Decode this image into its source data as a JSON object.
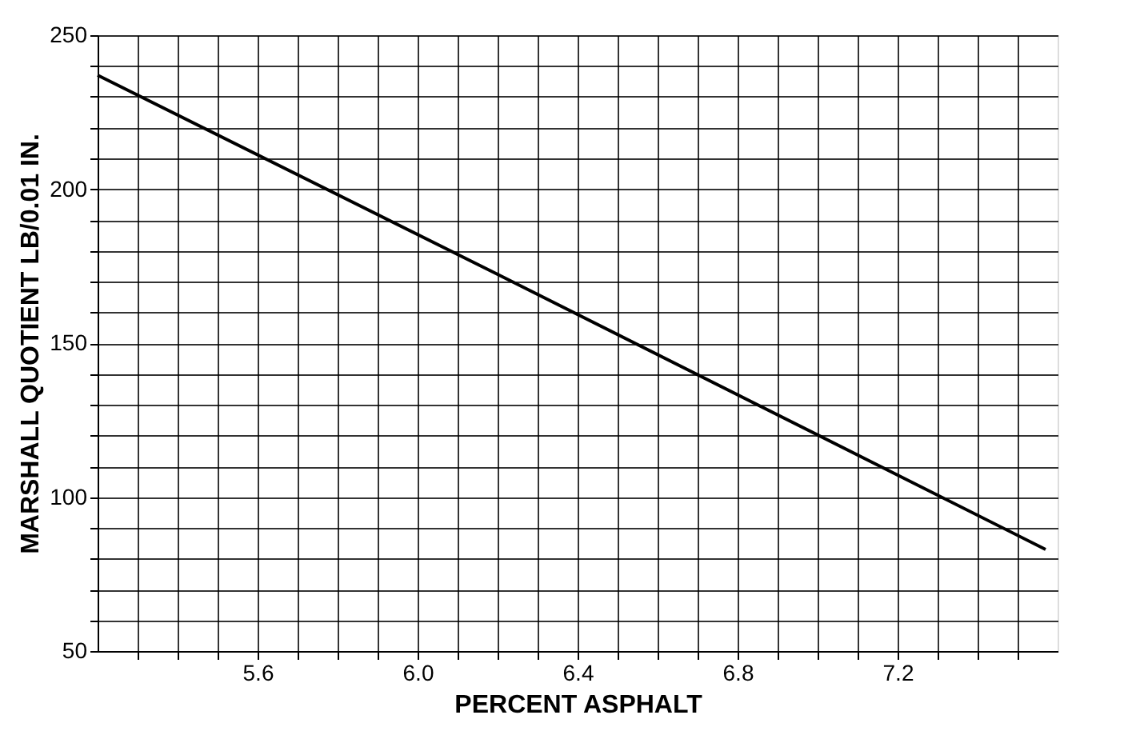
{
  "chart_data": {
    "type": "line",
    "xlabel": "PERCENT ASPHALT",
    "ylabel": "MARSHALL QUOTIENT LB/0.01 IN.",
    "series": [
      {
        "color": "#000000",
        "x": [
          5.2,
          6.19,
          7.57
        ],
        "values": [
          237,
          173,
          83
        ]
      }
    ],
    "xlim": [
      5.2,
      7.6
    ],
    "xticks": [
      {
        "value": 5.3,
        "label": null
      },
      {
        "value": 5.4,
        "label": null
      },
      {
        "value": 5.5,
        "label": null
      },
      5.6,
      {
        "value": 5.7,
        "label": null
      },
      {
        "value": 5.8,
        "label": null
      },
      {
        "value": 5.9,
        "label": null
      },
      {
        "value": 6.0,
        "label": "6.0"
      },
      {
        "value": 6.1,
        "label": null
      },
      {
        "value": 6.2,
        "label": null
      },
      {
        "value": 6.3,
        "label": null
      },
      6.4,
      {
        "value": 6.5,
        "label": null
      },
      {
        "value": 6.6,
        "label": null
      },
      {
        "value": 6.7,
        "label": null
      },
      6.8,
      {
        "value": 6.9,
        "label": null
      },
      {
        "value": 7.0,
        "label": null
      },
      {
        "value": 7.1,
        "label": null
      },
      7.2,
      {
        "value": 7.3,
        "label": null
      },
      {
        "value": 7.4,
        "label": null
      },
      {
        "value": 7.5,
        "label": null
      }
    ],
    "ylim": [
      50,
      250
    ],
    "yticks": [
      50,
      {
        "value": 60,
        "label": null
      },
      {
        "value": 70,
        "label": null
      },
      {
        "value": 80,
        "label": null
      },
      {
        "value": 90,
        "label": null
      },
      100,
      {
        "value": 110,
        "label": null
      },
      {
        "value": 120,
        "label": null
      },
      {
        "value": 130,
        "label": null
      },
      {
        "value": 140,
        "label": null
      },
      150,
      {
        "value": 160,
        "label": null
      },
      {
        "value": 170,
        "label": null
      },
      {
        "value": 180,
        "label": null
      },
      {
        "value": 190,
        "label": null
      },
      200,
      {
        "value": 210,
        "label": null
      },
      {
        "value": 220,
        "label": null
      },
      {
        "value": 230,
        "label": null
      },
      {
        "value": 240,
        "label": null
      },
      250
    ],
    "grid": true,
    "marker": "none",
    "line_style": "solid"
  }
}
